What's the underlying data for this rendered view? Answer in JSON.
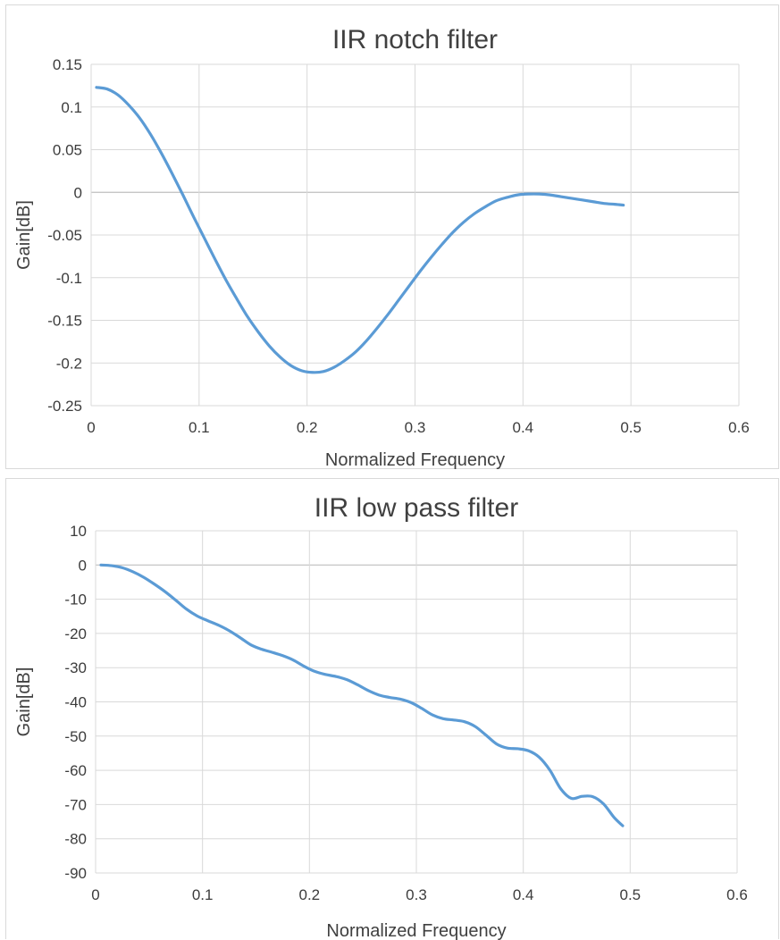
{
  "colors": {
    "series": "#5b9bd5",
    "grid": "#d9d9d9",
    "text": "#404040"
  },
  "chart_data": [
    {
      "type": "line",
      "title": "IIR notch filter",
      "xlabel": "Normalized Frequency",
      "ylabel": "Gain[dB]",
      "xlim": [
        0,
        0.6
      ],
      "ylim": [
        -0.25,
        0.15
      ],
      "grid": true,
      "legend": "none",
      "x_ticks": [
        "0",
        "0.1",
        "0.2",
        "0.3",
        "0.4",
        "0.5",
        "0.6"
      ],
      "y_ticks": [
        "0.15",
        "0.1",
        "0.05",
        "0",
        "-0.05",
        "-0.1",
        "-0.15",
        "-0.2",
        "-0.25"
      ],
      "series": [
        {
          "x": [
            0.005,
            0.015,
            0.025,
            0.035,
            0.045,
            0.055,
            0.065,
            0.075,
            0.085,
            0.095,
            0.105,
            0.115,
            0.125,
            0.135,
            0.145,
            0.155,
            0.165,
            0.175,
            0.185,
            0.195,
            0.205,
            0.215,
            0.225,
            0.235,
            0.245,
            0.255,
            0.265,
            0.275,
            0.285,
            0.295,
            0.305,
            0.315,
            0.325,
            0.335,
            0.345,
            0.355,
            0.365,
            0.375,
            0.385,
            0.395,
            0.405,
            0.415,
            0.425,
            0.435,
            0.445,
            0.455,
            0.465,
            0.475,
            0.485,
            0.493
          ],
          "values": [
            0.123,
            0.121,
            0.114,
            0.102,
            0.087,
            0.068,
            0.046,
            0.022,
            -0.003,
            -0.029,
            -0.054,
            -0.079,
            -0.103,
            -0.125,
            -0.146,
            -0.164,
            -0.18,
            -0.193,
            -0.203,
            -0.209,
            -0.211,
            -0.21,
            -0.205,
            -0.197,
            -0.187,
            -0.174,
            -0.159,
            -0.143,
            -0.126,
            -0.109,
            -0.092,
            -0.076,
            -0.061,
            -0.047,
            -0.035,
            -0.025,
            -0.017,
            -0.01,
            -0.006,
            -0.003,
            -0.002,
            -0.002,
            -0.003,
            -0.005,
            -0.007,
            -0.009,
            -0.011,
            -0.013,
            -0.014,
            -0.015
          ]
        }
      ]
    },
    {
      "type": "line",
      "title": "IIR low pass filter",
      "xlabel": "Normalized Frequency",
      "ylabel": "Gain[dB]",
      "xlim": [
        0,
        0.6
      ],
      "ylim": [
        -90,
        10
      ],
      "grid": true,
      "legend": "none",
      "x_ticks": [
        "0",
        "0.1",
        "0.2",
        "0.3",
        "0.4",
        "0.5",
        "0.6"
      ],
      "y_ticks": [
        "10",
        "0",
        "-10",
        "-20",
        "-30",
        "-40",
        "-50",
        "-60",
        "-70",
        "-80",
        "-90"
      ],
      "series": [
        {
          "x": [
            0.005,
            0.015,
            0.025,
            0.035,
            0.045,
            0.055,
            0.065,
            0.075,
            0.085,
            0.095,
            0.105,
            0.115,
            0.125,
            0.135,
            0.145,
            0.155,
            0.165,
            0.175,
            0.185,
            0.195,
            0.205,
            0.215,
            0.225,
            0.235,
            0.245,
            0.255,
            0.265,
            0.275,
            0.285,
            0.295,
            0.305,
            0.315,
            0.325,
            0.335,
            0.345,
            0.355,
            0.365,
            0.375,
            0.385,
            0.395,
            0.405,
            0.415,
            0.425,
            0.435,
            0.445,
            0.455,
            0.465,
            0.475,
            0.485,
            0.493
          ],
          "values": [
            0.0,
            -0.2,
            -0.8,
            -2.0,
            -3.6,
            -5.6,
            -7.8,
            -10.3,
            -12.9,
            -14.9,
            -16.3,
            -17.6,
            -19.2,
            -21.2,
            -23.3,
            -24.6,
            -25.5,
            -26.5,
            -27.8,
            -29.6,
            -31.1,
            -32.0,
            -32.6,
            -33.5,
            -35.0,
            -36.7,
            -38.0,
            -38.7,
            -39.2,
            -40.2,
            -41.9,
            -43.8,
            -44.9,
            -45.3,
            -45.8,
            -47.2,
            -49.7,
            -52.3,
            -53.5,
            -53.7,
            -54.3,
            -56.2,
            -60.0,
            -65.4,
            -68.2,
            -67.6,
            -67.7,
            -69.8,
            -73.8,
            -76.2
          ]
        }
      ]
    }
  ]
}
